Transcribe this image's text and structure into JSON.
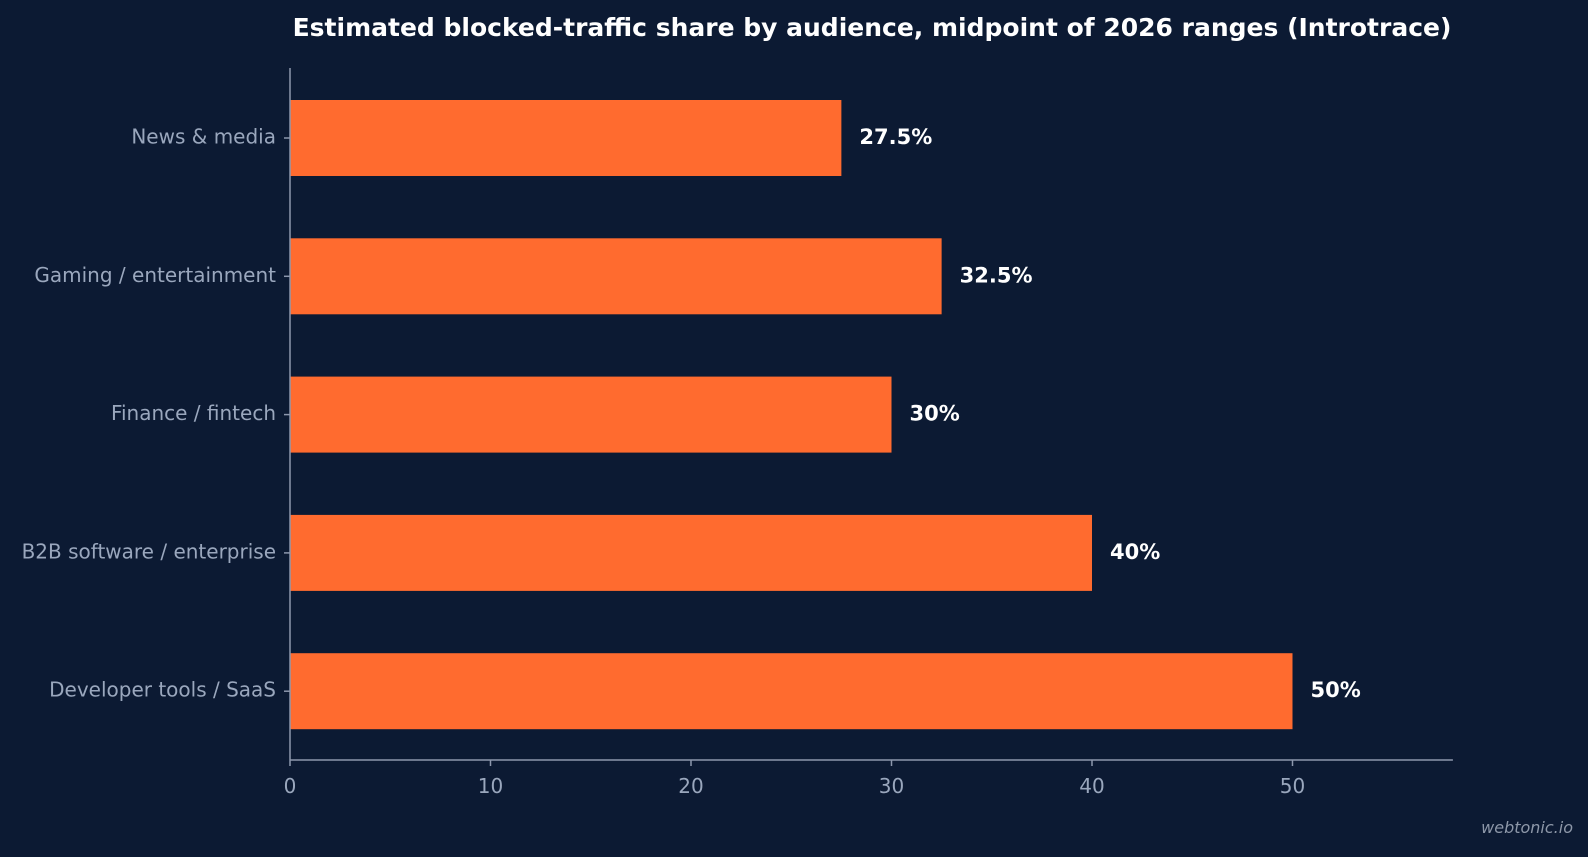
{
  "chart_data": {
    "type": "bar",
    "orientation": "horizontal",
    "title": "Estimated blocked-traffic share by audience, midpoint of 2026 ranges (Introtrace)",
    "categories": [
      "News & media",
      "Gaming / entertainment",
      "Finance / fintech",
      "B2B software / enterprise",
      "Developer tools / SaaS"
    ],
    "values": [
      27.5,
      32.5,
      30,
      40,
      50
    ],
    "data_labels": [
      "27.5%",
      "32.5%",
      "30%",
      "40%",
      "50%"
    ],
    "xlim": [
      0,
      58
    ],
    "xticks": [
      0,
      10,
      20,
      30,
      40,
      50
    ],
    "xlabel": "",
    "ylabel": "",
    "grid": false,
    "legend": "none",
    "bar_color": "#ff6b2f"
  },
  "watermark": "webtonic.io"
}
